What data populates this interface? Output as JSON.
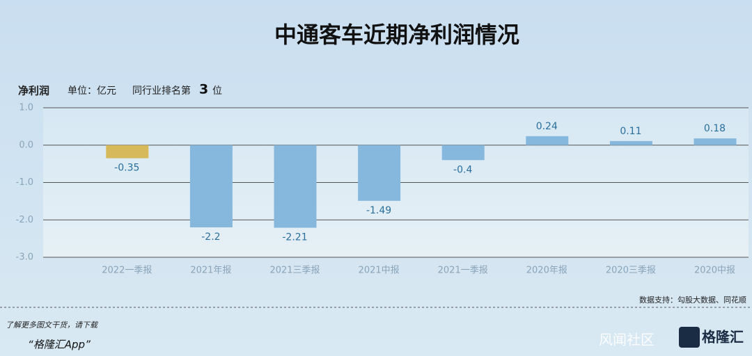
{
  "chart_data": {
    "type": "bar",
    "title": "中通客车近期净利润情况",
    "metric": "净利润",
    "unit": "单位：亿元",
    "rank_prefix": "同行业排名第",
    "rank": 3,
    "rank_suffix": "位",
    "categories": [
      "2022一季报",
      "2021年报",
      "2021三季报",
      "2021中报",
      "2021一季报",
      "2020年报",
      "2020三季报",
      "2020中报"
    ],
    "values": [
      -0.35,
      -2.2,
      -2.21,
      -1.49,
      -0.4,
      0.24,
      0.11,
      0.18
    ],
    "colors": [
      "#d6b95a",
      "#86b8de",
      "#86b8de",
      "#86b8de",
      "#86b8de",
      "#86b8de",
      "#86b8de",
      "#86b8de"
    ],
    "ylim": [
      -3,
      1
    ],
    "yticks": [
      {
        "value": 1,
        "label": "1.0"
      },
      {
        "value": 0,
        "label": "0.0"
      },
      {
        "value": -1,
        "label": "-1.0"
      },
      {
        "value": -2,
        "label": "-2.0"
      },
      {
        "value": -3,
        "label": "-3.0"
      }
    ],
    "grid": true,
    "source": "数据支持：勾股大数据、同花顺",
    "footer_line1": "了解更多图文干货，请下载",
    "footer_line2": "“格隆汇App”",
    "watermark": "风闻社区",
    "logo": "格隆汇"
  }
}
